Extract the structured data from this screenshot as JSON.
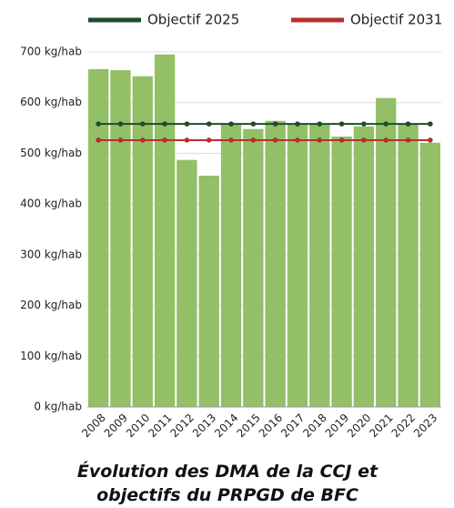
{
  "chart_data": {
    "type": "bar",
    "title": "Évolution des DMA de la CCJ et objectifs du PRPGD de BFC",
    "categories": [
      "2008",
      "2009",
      "2010",
      "2011",
      "2012",
      "2013",
      "2014",
      "2015",
      "2016",
      "2017",
      "2018",
      "2019",
      "2020",
      "2021",
      "2022",
      "2023"
    ],
    "values": [
      666,
      664,
      652,
      695,
      487,
      456,
      558,
      548,
      564,
      558,
      558,
      533,
      553,
      609,
      558,
      521
    ],
    "color": "#93bf67",
    "lines": [
      {
        "name": "Objectif 2025",
        "color": "#1e4d2b",
        "values": [
          558,
          558,
          558,
          558,
          558,
          558,
          558,
          558,
          558,
          558,
          558,
          558,
          558,
          558,
          558,
          558
        ]
      },
      {
        "name": "Objectif 2031",
        "color": "#b5302a",
        "values": [
          526,
          526,
          526,
          526,
          526,
          526,
          526,
          526,
          526,
          526,
          526,
          526,
          526,
          526,
          526,
          526
        ]
      }
    ],
    "ylim": [
      0,
      700
    ],
    "yticks": [
      {
        "value": 0,
        "label": "0 kg/hab"
      },
      {
        "value": 100,
        "label": "100 kg/hab"
      },
      {
        "value": 200,
        "label": "200 kg/hab"
      },
      {
        "value": 300,
        "label": "300 kg/hab"
      },
      {
        "value": 400,
        "label": "400 kg/hab"
      },
      {
        "value": 500,
        "label": "500 kg/hab"
      },
      {
        "value": 600,
        "label": "600 kg/hab"
      },
      {
        "value": 700,
        "label": "700 kg/hab"
      }
    ],
    "grid": true,
    "legend": "top"
  }
}
